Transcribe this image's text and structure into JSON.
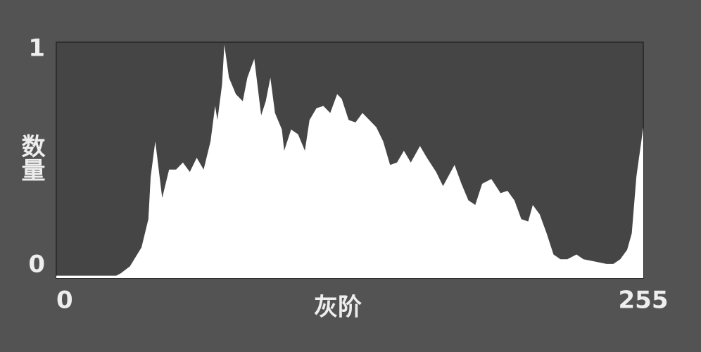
{
  "chart_data": {
    "type": "area",
    "color": "#ffffff",
    "xlabel": "灰阶",
    "ylabel": "数量",
    "x": [
      0,
      26,
      28,
      32,
      37,
      40,
      41,
      43,
      46,
      49,
      52,
      55,
      58,
      61,
      64,
      67,
      69,
      70,
      72,
      73,
      75,
      78,
      81,
      83,
      86,
      87,
      89,
      91,
      93,
      95,
      98,
      99,
      102,
      105,
      108,
      110,
      113,
      116,
      119,
      122,
      124,
      127,
      130,
      133,
      136,
      139,
      142,
      145,
      148,
      151,
      154,
      158,
      161,
      165,
      168,
      173,
      176,
      179,
      182,
      185,
      189,
      193,
      196,
      199,
      202,
      205,
      207,
      210,
      213,
      216,
      219,
      222,
      226,
      229,
      234,
      239,
      242,
      245,
      248,
      250,
      252,
      255
    ],
    "values": [
      0.01,
      0.01,
      0.02,
      0.05,
      0.13,
      0.25,
      0.43,
      0.58,
      0.34,
      0.46,
      0.46,
      0.49,
      0.45,
      0.51,
      0.46,
      0.58,
      0.73,
      0.67,
      0.82,
      0.99,
      0.85,
      0.78,
      0.75,
      0.85,
      0.93,
      0.85,
      0.69,
      0.75,
      0.85,
      0.7,
      0.63,
      0.54,
      0.63,
      0.61,
      0.54,
      0.67,
      0.72,
      0.73,
      0.7,
      0.78,
      0.76,
      0.67,
      0.66,
      0.7,
      0.67,
      0.64,
      0.58,
      0.48,
      0.49,
      0.54,
      0.49,
      0.56,
      0.51,
      0.45,
      0.39,
      0.48,
      0.4,
      0.33,
      0.31,
      0.4,
      0.42,
      0.36,
      0.37,
      0.33,
      0.25,
      0.24,
      0.31,
      0.27,
      0.19,
      0.1,
      0.08,
      0.08,
      0.1,
      0.08,
      0.07,
      0.06,
      0.06,
      0.08,
      0.12,
      0.19,
      0.43,
      0.64
    ],
    "xlim": [
      0,
      255
    ],
    "xticks": [
      0,
      255
    ],
    "ylim": [
      0,
      1
    ],
    "yticks": [
      0,
      1
    ]
  }
}
